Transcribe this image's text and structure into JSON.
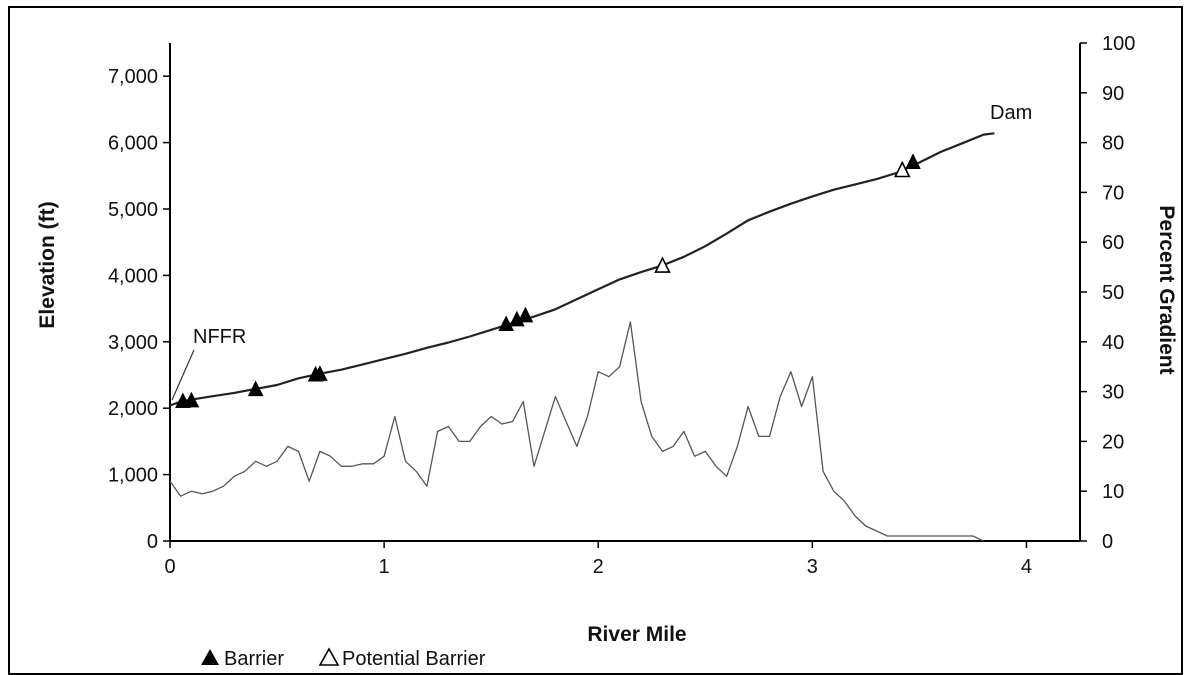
{
  "chart_data": {
    "type": "line",
    "xlabel": "River Mile",
    "ylabel": "Elevation (ft)",
    "y2label": "Percent Gradient",
    "xlim": [
      0,
      4.25
    ],
    "ylim": [
      0,
      7500
    ],
    "y2lim": [
      0,
      100
    ],
    "x_ticks": [
      0,
      1,
      2,
      3,
      4
    ],
    "x_tick_labels": [
      "0",
      "1",
      "2",
      "3",
      "4"
    ],
    "y_ticks": [
      0,
      1000,
      2000,
      3000,
      4000,
      5000,
      6000,
      7000
    ],
    "y_tick_labels": [
      "0",
      "1,000",
      "2,000",
      "3,000",
      "4,000",
      "5,000",
      "6,000",
      "7,000"
    ],
    "y2_ticks": [
      0,
      10,
      20,
      30,
      40,
      50,
      60,
      70,
      80,
      90,
      100
    ],
    "y2_tick_labels": [
      "0",
      "10",
      "20",
      "30",
      "40",
      "50",
      "60",
      "70",
      "80",
      "90",
      "100"
    ],
    "grid": false,
    "legend_position": "bottom-left",
    "series": [
      {
        "axis": "left",
        "color": "#222222",
        "x": [
          0.0,
          0.05,
          0.1,
          0.2,
          0.3,
          0.4,
          0.5,
          0.6,
          0.7,
          0.8,
          0.9,
          1.0,
          1.1,
          1.2,
          1.3,
          1.4,
          1.5,
          1.6,
          1.7,
          1.8,
          1.9,
          2.0,
          2.1,
          2.2,
          2.3,
          2.4,
          2.5,
          2.6,
          2.7,
          2.8,
          2.9,
          3.0,
          3.1,
          3.2,
          3.3,
          3.4,
          3.5,
          3.6,
          3.7,
          3.8,
          3.85
        ],
        "values": [
          2040,
          2100,
          2130,
          2180,
          2230,
          2290,
          2350,
          2450,
          2520,
          2580,
          2660,
          2740,
          2820,
          2910,
          2990,
          3080,
          3180,
          3280,
          3380,
          3490,
          3640,
          3790,
          3940,
          4050,
          4150,
          4280,
          4440,
          4630,
          4830,
          4960,
          5080,
          5190,
          5290,
          5370,
          5450,
          5550,
          5700,
          5860,
          5990,
          6120,
          6140
        ]
      },
      {
        "axis": "right",
        "color": "#555555",
        "x": [
          0.0,
          0.05,
          0.1,
          0.15,
          0.2,
          0.25,
          0.3,
          0.35,
          0.4,
          0.45,
          0.5,
          0.55,
          0.6,
          0.65,
          0.7,
          0.75,
          0.8,
          0.85,
          0.9,
          0.95,
          1.0,
          1.05,
          1.1,
          1.15,
          1.2,
          1.25,
          1.3,
          1.35,
          1.4,
          1.45,
          1.5,
          1.55,
          1.6,
          1.65,
          1.7,
          1.75,
          1.8,
          1.85,
          1.9,
          1.95,
          2.0,
          2.05,
          2.1,
          2.15,
          2.2,
          2.25,
          2.3,
          2.35,
          2.4,
          2.45,
          2.5,
          2.55,
          2.6,
          2.65,
          2.7,
          2.75,
          2.8,
          2.85,
          2.9,
          2.95,
          3.0,
          3.05,
          3.1,
          3.15,
          3.2,
          3.25,
          3.3,
          3.35,
          3.4,
          3.45,
          3.5,
          3.55,
          3.6,
          3.65,
          3.7,
          3.75,
          3.8
        ],
        "values": [
          12,
          9,
          10,
          9.5,
          10,
          11,
          13,
          14,
          16,
          15,
          16,
          19,
          18,
          12,
          18,
          17,
          15,
          15,
          15.5,
          15.5,
          17,
          25,
          16,
          14,
          11,
          22,
          23,
          20,
          20,
          23,
          25,
          23.5,
          24,
          28,
          15,
          22,
          29,
          24,
          19,
          25,
          34,
          33,
          35,
          44,
          28,
          21,
          18,
          19,
          22,
          17,
          18,
          15,
          13,
          19,
          27,
          21,
          21,
          29,
          34,
          27,
          33,
          14,
          10,
          8,
          5,
          3,
          2,
          1,
          1,
          1,
          1,
          1,
          1,
          1,
          1,
          1,
          0
        ]
      }
    ],
    "barriers": {
      "x": [
        0.06,
        0.1,
        0.4,
        0.68,
        0.7,
        1.57,
        1.62,
        1.66,
        3.47
      ],
      "y": [
        2100,
        2110,
        2280,
        2500,
        2510,
        3260,
        3330,
        3390,
        5700
      ]
    },
    "potential_barriers": {
      "x": [
        2.3,
        3.42
      ],
      "y": [
        4140,
        5580
      ]
    },
    "annotations": [
      "NFFR",
      "Dam"
    ],
    "legend": {
      "barrier": "Barrier",
      "potential_barrier": "Potential Barrier"
    }
  }
}
